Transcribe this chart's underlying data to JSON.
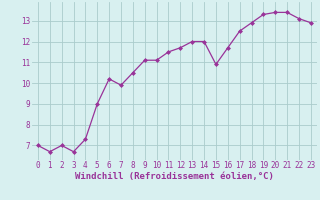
{
  "x": [
    0,
    1,
    2,
    3,
    4,
    5,
    6,
    7,
    8,
    9,
    10,
    11,
    12,
    13,
    14,
    15,
    16,
    17,
    18,
    19,
    20,
    21,
    22,
    23
  ],
  "y": [
    7.0,
    6.7,
    7.0,
    6.7,
    7.3,
    9.0,
    10.2,
    9.9,
    10.5,
    11.1,
    11.1,
    11.5,
    11.7,
    12.0,
    12.0,
    10.9,
    11.7,
    12.5,
    12.9,
    13.3,
    13.4,
    13.4,
    13.1,
    12.9
  ],
  "line_color": "#993399",
  "marker": "D",
  "markersize": 2.0,
  "linewidth": 0.9,
  "bg_color": "#d8f0f0",
  "grid_color": "#aacccc",
  "xlabel": "Windchill (Refroidissement éolien,°C)",
  "xlabel_color": "#993399",
  "xlabel_fontsize": 6.5,
  "tick_color": "#993399",
  "tick_fontsize": 5.5,
  "ytick_vals": [
    7,
    8,
    9,
    10,
    11,
    12,
    13
  ],
  "ytick_labels": [
    "7",
    "8",
    "9",
    "10",
    "11",
    "12",
    "13"
  ],
  "ylim": [
    6.3,
    13.9
  ],
  "xlim": [
    -0.5,
    23.5
  ]
}
